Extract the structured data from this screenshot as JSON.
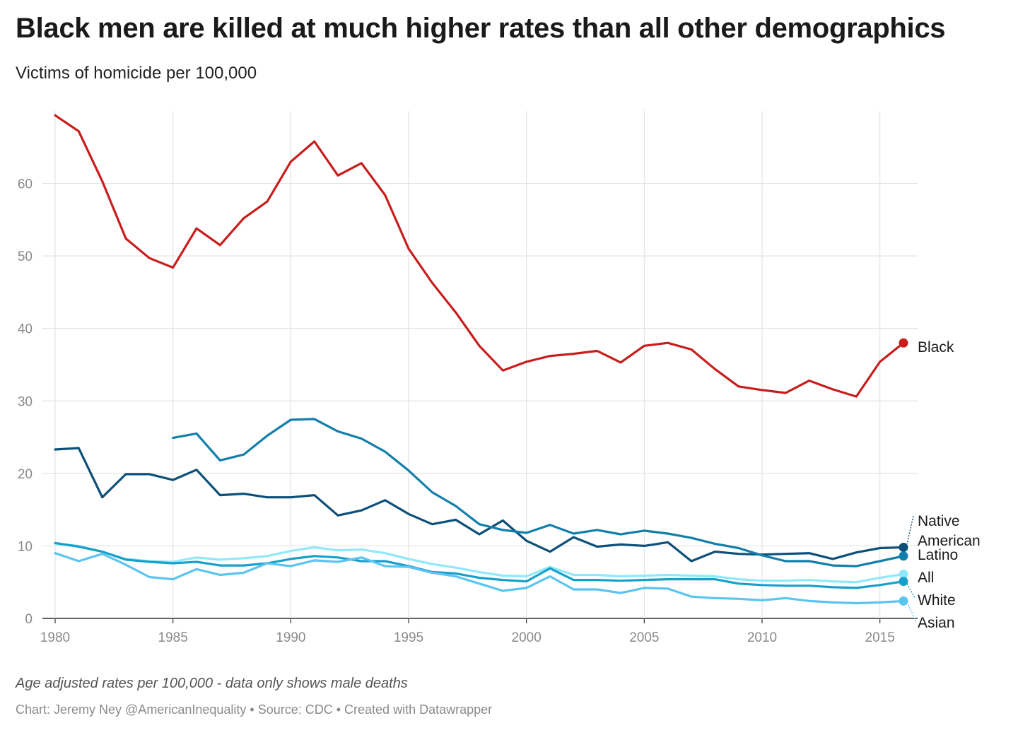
{
  "title": "Black men are killed at much higher rates than all other demographics",
  "subtitle": "Victims of homicide per 100,000",
  "notes": "Age adjusted rates per 100,000 - data only shows male deaths",
  "credit": "Chart: Jeremy Ney @AmericanInequality • Source: CDC • Created with Datawrapper",
  "chart_data": {
    "type": "line",
    "title": "Black men are killed at much higher rates than all other demographics",
    "subtitle": "Victims of homicide per 100,000",
    "xlabel": "",
    "ylabel": "",
    "xlim": [
      1980,
      2016
    ],
    "ylim": [
      0,
      70
    ],
    "x_ticks": [
      1980,
      1985,
      1990,
      1995,
      2000,
      2005,
      2010,
      2015
    ],
    "y_ticks": [
      0,
      10,
      20,
      30,
      40,
      50,
      60
    ],
    "grid": true,
    "legend": "direct labels at line ends (right)",
    "series": [
      {
        "name": "Black",
        "label": "Black",
        "color": "#c71e1d",
        "x": [
          1980,
          1981,
          1982,
          1983,
          1984,
          1985,
          1986,
          1987,
          1988,
          1989,
          1990,
          1991,
          1992,
          1993,
          1994,
          1995,
          1996,
          1997,
          1998,
          1999,
          2000,
          2001,
          2002,
          2003,
          2004,
          2005,
          2006,
          2007,
          2008,
          2009,
          2010,
          2011,
          2012,
          2013,
          2014,
          2015,
          2016
        ],
        "values": [
          69.4,
          67.2,
          60.3,
          52.4,
          49.7,
          48.4,
          53.8,
          51.5,
          55.2,
          57.5,
          63.0,
          65.8,
          61.1,
          62.8,
          58.4,
          51.0,
          46.3,
          42.2,
          37.6,
          34.2,
          35.4,
          36.2,
          36.5,
          36.9,
          35.3,
          37.6,
          38.0,
          37.1,
          34.4,
          32.0,
          31.5,
          31.1,
          32.8,
          31.6,
          30.6,
          35.4,
          38.0
        ]
      },
      {
        "name": "Native American",
        "label": "Native American",
        "color": "#0c5079",
        "x": [
          1980,
          1981,
          1982,
          1983,
          1984,
          1985,
          1986,
          1987,
          1988,
          1989,
          1990,
          1991,
          1992,
          1993,
          1994,
          1995,
          1996,
          1997,
          1998,
          1999,
          2000,
          2001,
          2002,
          2003,
          2004,
          2005,
          2006,
          2007,
          2008,
          2009,
          2010,
          2011,
          2012,
          2013,
          2014,
          2015,
          2016
        ],
        "values": [
          23.3,
          23.5,
          16.7,
          19.9,
          19.9,
          19.1,
          20.5,
          17.0,
          17.2,
          16.7,
          16.7,
          17.0,
          14.2,
          14.9,
          16.3,
          14.4,
          13.0,
          13.6,
          11.6,
          13.5,
          10.7,
          9.2,
          11.2,
          9.9,
          10.2,
          10.0,
          10.5,
          7.9,
          9.2,
          8.9,
          8.8,
          8.9,
          9.0,
          8.2,
          9.1,
          9.7,
          9.8
        ]
      },
      {
        "name": "Latino",
        "label": "Latino",
        "color": "#127fab",
        "x": [
          1985,
          1986,
          1987,
          1988,
          1989,
          1990,
          1991,
          1992,
          1993,
          1994,
          1995,
          1996,
          1997,
          1998,
          1999,
          2000,
          2001,
          2002,
          2003,
          2004,
          2005,
          2006,
          2007,
          2008,
          2009,
          2010,
          2011,
          2012,
          2013,
          2014,
          2015,
          2016
        ],
        "values": [
          24.9,
          25.5,
          21.8,
          22.6,
          25.2,
          27.4,
          27.5,
          25.8,
          24.8,
          23.0,
          20.4,
          17.4,
          15.5,
          13.0,
          12.2,
          11.8,
          12.9,
          11.7,
          12.2,
          11.6,
          12.1,
          11.7,
          11.1,
          10.3,
          9.7,
          8.7,
          7.9,
          7.9,
          7.3,
          7.2,
          7.9,
          8.6
        ]
      },
      {
        "name": "All",
        "label": "All",
        "color": "#8fe8fb",
        "x": [
          1980,
          1981,
          1982,
          1983,
          1984,
          1985,
          1986,
          1987,
          1988,
          1989,
          1990,
          1991,
          1992,
          1993,
          1994,
          1995,
          1996,
          1997,
          1998,
          1999,
          2000,
          2001,
          2002,
          2003,
          2004,
          2005,
          2006,
          2007,
          2008,
          2009,
          2010,
          2011,
          2012,
          2013,
          2014,
          2015,
          2016
        ],
        "values": [
          10.3,
          10.0,
          9.2,
          8.2,
          7.9,
          7.8,
          8.4,
          8.1,
          8.3,
          8.6,
          9.3,
          9.8,
          9.4,
          9.5,
          9.0,
          8.2,
          7.5,
          7.0,
          6.4,
          5.9,
          5.8,
          7.1,
          6.0,
          6.0,
          5.8,
          5.9,
          6.0,
          5.9,
          5.8,
          5.4,
          5.2,
          5.2,
          5.3,
          5.1,
          5.0,
          5.6,
          6.1
        ]
      },
      {
        "name": "White",
        "label": "White",
        "color": "#17a0c9",
        "x": [
          1980,
          1981,
          1982,
          1983,
          1984,
          1985,
          1986,
          1987,
          1988,
          1989,
          1990,
          1991,
          1992,
          1993,
          1994,
          1995,
          1996,
          1997,
          1998,
          1999,
          2000,
          2001,
          2002,
          2003,
          2004,
          2005,
          2006,
          2007,
          2008,
          2009,
          2010,
          2011,
          2012,
          2013,
          2014,
          2015,
          2016
        ],
        "values": [
          10.4,
          9.9,
          9.2,
          8.1,
          7.8,
          7.6,
          7.8,
          7.3,
          7.3,
          7.6,
          8.2,
          8.6,
          8.4,
          7.9,
          7.9,
          7.2,
          6.4,
          6.2,
          5.6,
          5.3,
          5.1,
          6.9,
          5.3,
          5.3,
          5.2,
          5.3,
          5.4,
          5.4,
          5.4,
          4.8,
          4.6,
          4.5,
          4.5,
          4.3,
          4.2,
          4.6,
          5.1
        ]
      },
      {
        "name": "Asian",
        "label": "Asian",
        "color": "#5bc4f0",
        "x": [
          1980,
          1981,
          1982,
          1983,
          1984,
          1985,
          1986,
          1987,
          1988,
          1989,
          1990,
          1991,
          1992,
          1993,
          1994,
          1995,
          1996,
          1997,
          1998,
          1999,
          2000,
          2001,
          2002,
          2003,
          2004,
          2005,
          2006,
          2007,
          2008,
          2009,
          2010,
          2011,
          2012,
          2013,
          2014,
          2015,
          2016
        ],
        "values": [
          9.0,
          7.9,
          8.9,
          7.4,
          5.7,
          5.4,
          6.8,
          6.0,
          6.3,
          7.6,
          7.2,
          8.0,
          7.8,
          8.4,
          7.2,
          7.1,
          6.3,
          5.8,
          4.8,
          3.8,
          4.2,
          5.8,
          4.0,
          4.0,
          3.5,
          4.2,
          4.1,
          3.0,
          2.8,
          2.7,
          2.5,
          2.8,
          2.4,
          2.2,
          2.1,
          2.2,
          2.4
        ]
      }
    ]
  }
}
